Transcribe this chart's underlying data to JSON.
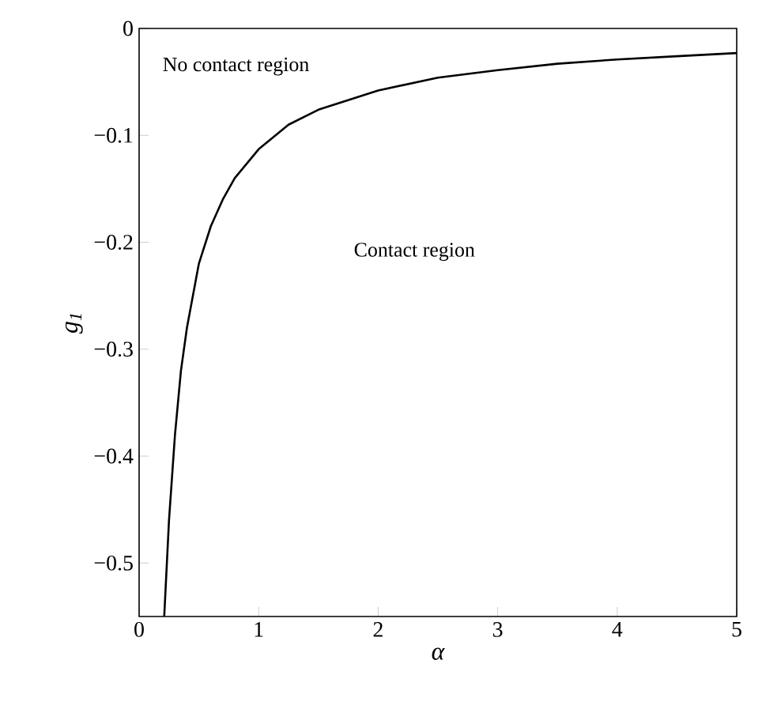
{
  "chart_data": {
    "type": "line",
    "xlabel": "α",
    "ylabel": "g$_{1}$",
    "x": [
      0.21,
      0.25,
      0.3,
      0.35,
      0.4,
      0.5,
      0.6,
      0.7,
      0.8,
      1.0,
      1.25,
      1.5,
      2.0,
      2.5,
      3.0,
      3.5,
      4.0,
      4.5,
      5.0
    ],
    "series": [
      {
        "color": "#000000",
        "values": [
          -0.55,
          -0.46,
          -0.38,
          -0.32,
          -0.28,
          -0.22,
          -0.185,
          -0.16,
          -0.14,
          -0.113,
          -0.09,
          -0.076,
          -0.058,
          -0.046,
          -0.039,
          -0.033,
          -0.029,
          -0.026,
          -0.023
        ]
      }
    ],
    "xlim": [
      0,
      5
    ],
    "ylim": [
      -0.55,
      0
    ],
    "xticks": [
      0,
      1,
      2,
      3,
      4,
      5
    ],
    "yticks": [
      0,
      {
        "value": -0.1,
        "label": "−0.1"
      },
      {
        "value": -0.2,
        "label": "−0.2"
      },
      {
        "value": -0.3,
        "label": "−0.3"
      },
      {
        "value": -0.4,
        "label": "−0.4"
      },
      {
        "value": -0.5,
        "label": "−0.5"
      }
    ],
    "annotations": [
      "No contact region",
      "Contact region"
    ],
    "grid": false,
    "legend": false,
    "marker": "none",
    "line_style": "solid"
  }
}
